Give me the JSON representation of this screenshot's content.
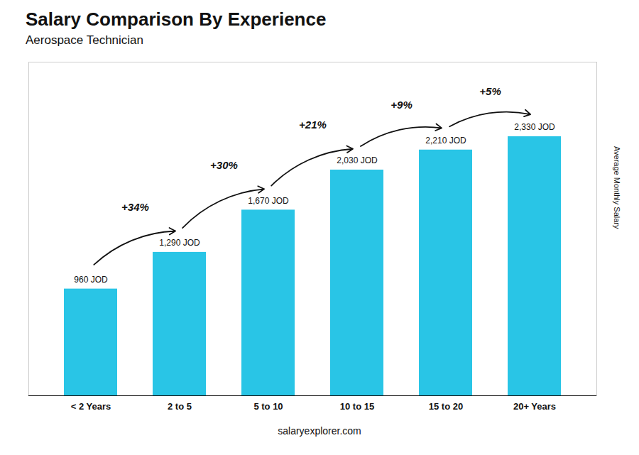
{
  "chart_data": {
    "type": "bar",
    "title": "Salary Comparison By Experience",
    "subtitle": "Aerospace Technician",
    "categories": [
      "< 2 Years",
      "2 to 5",
      "5 to 10",
      "10 to 15",
      "15 to 20",
      "20+ Years"
    ],
    "values": [
      960,
      1290,
      1670,
      2030,
      2210,
      2330
    ],
    "value_labels": [
      "960 JOD",
      "1,290 JOD",
      "1,670 JOD",
      "2,030 JOD",
      "2,210 JOD",
      "2,330 JOD"
    ],
    "data_labels": true,
    "color": "#29c5e6",
    "ylabel": "Average Monthly Salary",
    "annotations": [
      "+34%",
      "+30%",
      "+21%",
      "+9%",
      "+5%"
    ],
    "caption": "salaryexplorer.com",
    "ylim": [
      0,
      3000
    ],
    "tick_labels": "x"
  }
}
